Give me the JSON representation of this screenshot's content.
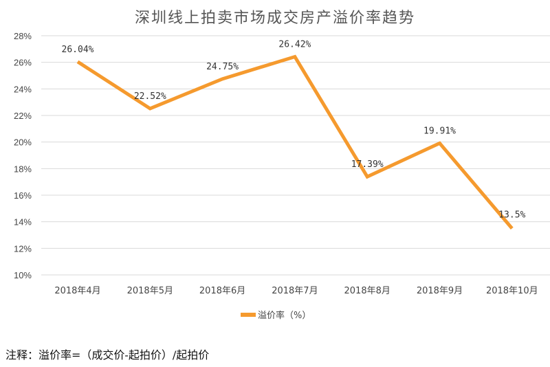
{
  "chart_data": {
    "type": "line",
    "title": "深圳线上拍卖市场成交房产溢价率趋势",
    "categories": [
      "2018年4月",
      "2018年5月",
      "2018年6月",
      "2018年7月",
      "2018年8月",
      "2018年9月",
      "2018年10月"
    ],
    "series": [
      {
        "name": "溢价率（%）",
        "values": [
          26.04,
          22.52,
          24.75,
          26.42,
          17.39,
          19.91,
          13.5
        ],
        "labels": [
          "26.04%",
          "22.52%",
          "24.75%",
          "26.42%",
          "17.39%",
          "19.91%",
          "13.5%"
        ],
        "color": "#F59A2E"
      }
    ],
    "yticks": [
      "10%",
      "12%",
      "14%",
      "16%",
      "18%",
      "20%",
      "22%",
      "24%",
      "26%",
      "28%"
    ],
    "ylim": [
      10,
      28
    ],
    "grid": true,
    "legend": "bottom"
  },
  "note": "注释：溢价率=（成交价-起拍价）/起拍价"
}
